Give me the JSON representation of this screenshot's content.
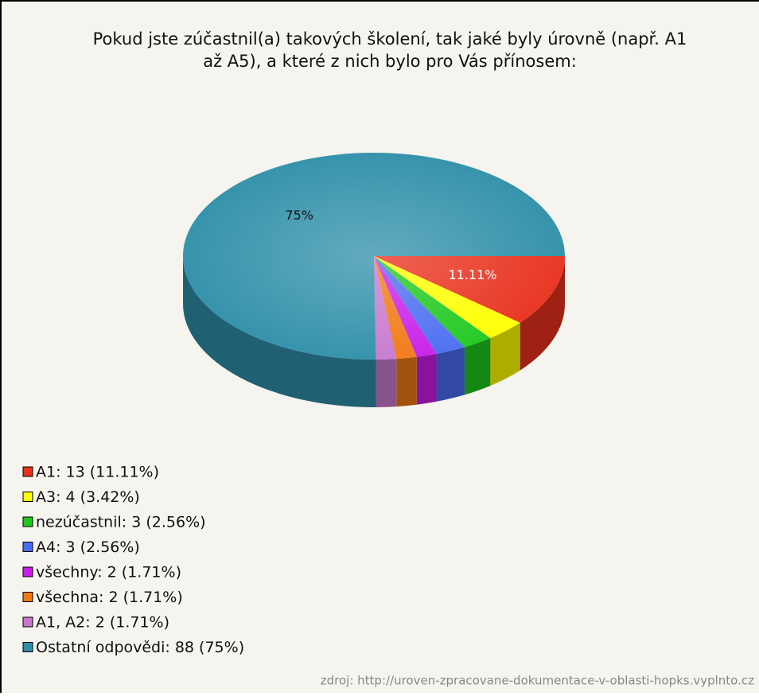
{
  "chart_data": {
    "type": "pie",
    "title": [
      "Pokud jste zúčastnil(a) takových školení, tak jaké byly úrovně (např. A1",
      "až A5), a které z nich bylo pro Vás přínosem:"
    ],
    "categories": [
      "A1",
      "A3",
      "nezúčastnil",
      "A4",
      "všechny",
      "všechna",
      "A1, A2",
      "Ostatní odpovědi"
    ],
    "values": [
      11.11,
      3.42,
      2.56,
      2.56,
      1.71,
      1.71,
      1.71,
      75
    ],
    "value_labels": [
      "11.11%",
      null,
      null,
      null,
      null,
      null,
      null,
      "75%"
    ],
    "legend_labels": [
      "A1: 13 (11.11%)",
      "A3: 4 (3.42%)",
      "nezúčastnil: 3 (2.56%)",
      "A4: 3 (2.56%)",
      "všechny: 2 (1.71%)",
      "všechna: 2 (1.71%)",
      "A1, A2: 2 (1.71%)",
      "Ostatní odpovědi: 88 (75%)"
    ],
    "colors": [
      "#e8301c",
      "#ffff00",
      "#1ec81e",
      "#4a6cf0",
      "#c81ee8",
      "#f07814",
      "#c878d0",
      "#2e8fa8"
    ],
    "source": "zdroj: http://uroven-zpracovane-dokumentace-v-oblasti-hopks.vyplnto.cz"
  }
}
